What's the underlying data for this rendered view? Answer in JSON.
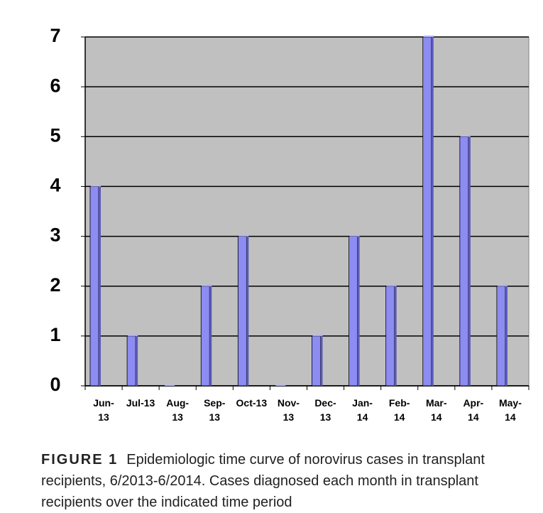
{
  "chart_data": {
    "type": "bar",
    "categories": [
      "Jun-13",
      "Jul-13",
      "Aug-13",
      "Sep-13",
      "Oct-13",
      "Nov-13",
      "Dec-13",
      "Jan-14",
      "Feb-14",
      "Mar-14",
      "Apr-14",
      "May-14"
    ],
    "values": [
      4,
      1,
      0,
      2,
      3,
      0,
      1,
      3,
      2,
      7,
      5,
      2
    ],
    "color": "#8c8cf2",
    "ylim": [
      0,
      7
    ],
    "yticks": [
      0,
      1,
      2,
      3,
      4,
      5,
      6,
      7
    ],
    "grid": true
  },
  "caption": {
    "label": "FIGURE 1",
    "text": "Epidemiologic time curve of norovirus cases in transplant recipients, 6/2013-6/2014. Cases diagnosed each month in transplant recipients over the indicated time period"
  }
}
